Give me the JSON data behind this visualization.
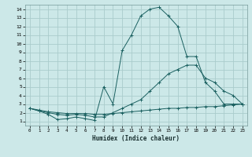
{
  "xlabel": "Humidex (Indice chaleur)",
  "bg_color": "#cce8e8",
  "grid_color": "#aacccc",
  "line_color": "#1a6060",
  "xlim": [
    -0.5,
    23.5
  ],
  "ylim": [
    0.5,
    14.5
  ],
  "xticks": [
    0,
    1,
    2,
    3,
    4,
    5,
    6,
    7,
    8,
    9,
    10,
    11,
    12,
    13,
    14,
    15,
    16,
    17,
    18,
    19,
    20,
    21,
    22,
    23
  ],
  "yticks": [
    1,
    2,
    3,
    4,
    5,
    6,
    7,
    8,
    9,
    10,
    11,
    12,
    13,
    14
  ],
  "line1_x": [
    0,
    1,
    2,
    3,
    4,
    5,
    6,
    7,
    8,
    9,
    10,
    11,
    12,
    13,
    14,
    15,
    16,
    17,
    18,
    19,
    20,
    21,
    22,
    23
  ],
  "line1_y": [
    2.5,
    2.2,
    1.8,
    1.2,
    1.3,
    1.5,
    1.3,
    1.1,
    5.0,
    3.0,
    9.2,
    11.0,
    13.2,
    14.0,
    14.2,
    13.2,
    12.0,
    8.5,
    8.5,
    5.5,
    4.5,
    3.0,
    3.0,
    3.0
  ],
  "line2_x": [
    0,
    1,
    2,
    3,
    4,
    5,
    6,
    7,
    8,
    9,
    10,
    11,
    12,
    13,
    14,
    15,
    16,
    17,
    18,
    19,
    20,
    21,
    22,
    23
  ],
  "line2_y": [
    2.5,
    2.2,
    2.0,
    1.8,
    1.7,
    1.8,
    1.7,
    1.5,
    1.5,
    2.0,
    2.5,
    3.0,
    3.5,
    4.5,
    5.5,
    6.5,
    7.0,
    7.5,
    7.5,
    6.0,
    5.5,
    4.5,
    4.0,
    3.0
  ],
  "line3_x": [
    0,
    1,
    2,
    3,
    4,
    5,
    6,
    7,
    8,
    9,
    10,
    11,
    12,
    13,
    14,
    15,
    16,
    17,
    18,
    19,
    20,
    21,
    22,
    23
  ],
  "line3_y": [
    2.5,
    2.3,
    2.1,
    2.0,
    1.9,
    1.9,
    1.9,
    1.8,
    1.8,
    1.9,
    2.0,
    2.1,
    2.2,
    2.3,
    2.4,
    2.5,
    2.5,
    2.6,
    2.6,
    2.7,
    2.7,
    2.8,
    2.9,
    3.0
  ]
}
